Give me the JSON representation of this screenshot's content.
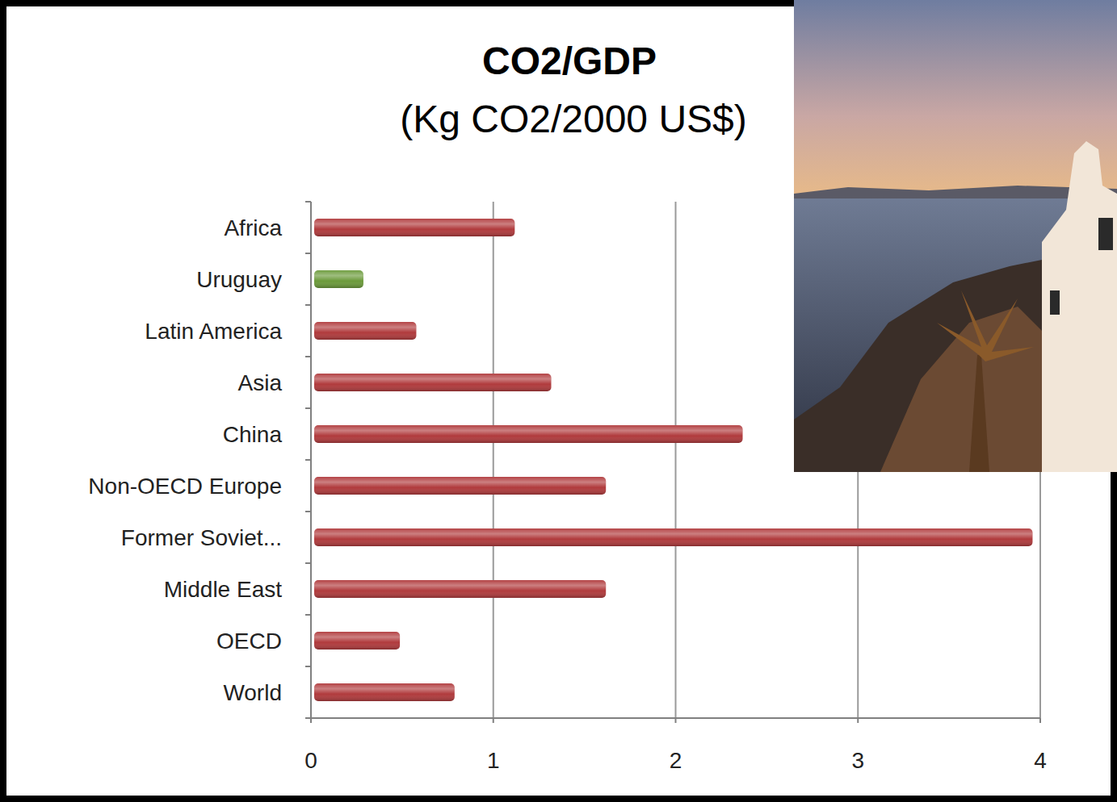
{
  "chart_data": {
    "type": "bar",
    "orientation": "horizontal",
    "title": "CO2/GDP",
    "subtitle": "(Kg CO2/2000 US$)",
    "categories": [
      "Africa",
      "Uruguay",
      "Latin America",
      "Asia",
      "China",
      "Non-OECD Europe",
      "Former Soviet...",
      "Middle East",
      "OECD",
      "World"
    ],
    "values": [
      1.1,
      0.27,
      0.56,
      1.3,
      2.35,
      1.6,
      3.94,
      1.6,
      0.47,
      0.77
    ],
    "colors": [
      "#b03a3c",
      "#6b9a3a",
      "#b03a3c",
      "#b03a3c",
      "#b03a3c",
      "#b03a3c",
      "#b03a3c",
      "#b03a3c",
      "#b03a3c",
      "#b03a3c"
    ],
    "xlim": [
      0,
      4
    ],
    "xticks": [
      0,
      1,
      2,
      3,
      4
    ],
    "grid": true
  }
}
